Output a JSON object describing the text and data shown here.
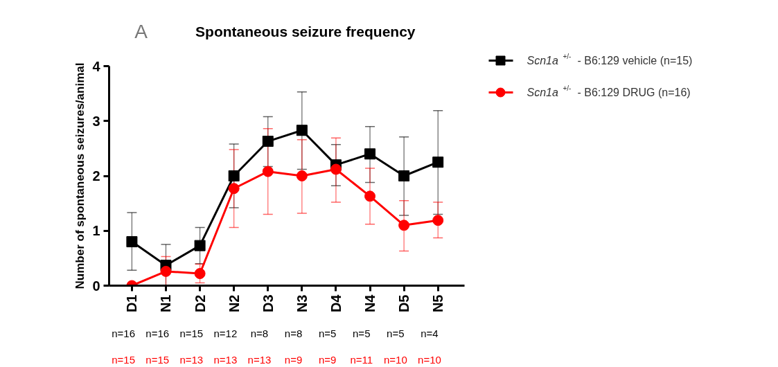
{
  "chart_data": {
    "type": "line",
    "title": "Spontaneous seizure frequency",
    "ylabel": "Number of spontaneous seizures/animal",
    "categories": [
      "D1",
      "N1",
      "D2",
      "N2",
      "D3",
      "N3",
      "D4",
      "N4",
      "D5",
      "N5"
    ],
    "ylim": [
      0,
      4
    ],
    "yticks": [
      0,
      1,
      2,
      3,
      4
    ],
    "grid": false,
    "legend": "right",
    "series": [
      {
        "name": "Scn1a$^{+/-}$ - B6:129 vehicle (n=15)",
        "color": "#000000",
        "marker": "square",
        "values": [
          0.8,
          0.37,
          0.73,
          2.0,
          2.63,
          2.83,
          2.2,
          2.4,
          2.0,
          2.25
        ],
        "errors": [
          [
            0.28,
            1.33
          ],
          [
            0.0,
            0.75
          ],
          [
            0.4,
            1.06
          ],
          [
            1.42,
            2.58
          ],
          [
            2.17,
            3.08
          ],
          [
            2.12,
            3.53
          ],
          [
            1.82,
            2.57
          ],
          [
            1.88,
            2.9
          ],
          [
            1.28,
            2.71
          ],
          [
            1.3,
            3.19
          ]
        ]
      },
      {
        "name": "Scn1a$^{+/-}$ - B6:129 DRUG (n=16)",
        "color": "#ff0000",
        "marker": "circle",
        "values": [
          0.0,
          0.26,
          0.22,
          1.77,
          2.08,
          2.0,
          2.12,
          1.63,
          1.1,
          1.19
        ],
        "errors": [
          null,
          [
            0.0,
            0.53
          ],
          [
            0.05,
            0.39
          ],
          [
            1.06,
            2.48
          ],
          [
            1.3,
            2.86
          ],
          [
            1.32,
            2.66
          ],
          [
            1.52,
            2.69
          ],
          [
            1.12,
            2.14
          ],
          [
            0.63,
            1.55
          ],
          [
            0.87,
            1.52
          ]
        ]
      }
    ],
    "annotations": [
      "A",
      "n=16",
      "n=16",
      "n=15",
      "n=12",
      "n=8",
      "n=8",
      "n=5",
      "n=5",
      "n=5",
      "n=4",
      "n=15",
      "n=15",
      "n=13",
      "n=13",
      "n=13",
      "n=9",
      "n=9",
      "n=11",
      "n=10",
      "n=10"
    ]
  }
}
